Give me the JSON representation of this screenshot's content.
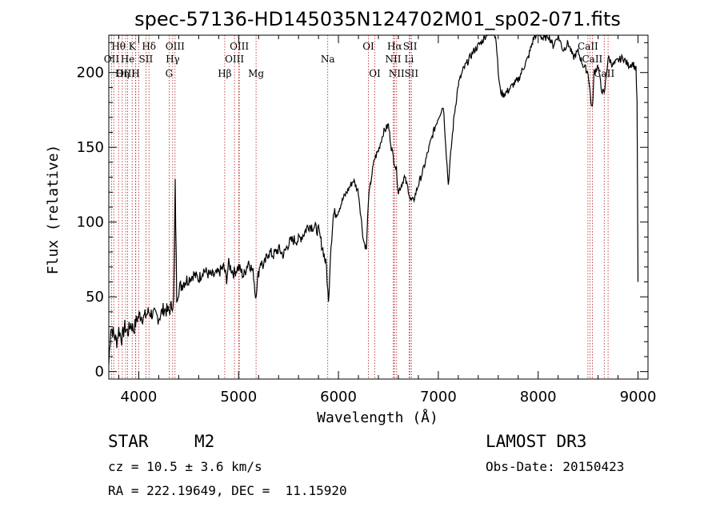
{
  "chart_data": {
    "type": "line",
    "title": "spec-57136-HD145035N124702M01_sp02-071.fits",
    "xlabel": "Wavelength (Å)",
    "ylabel": "Flux (relative)",
    "xlim": [
      3700,
      9100
    ],
    "ylim": [
      -5,
      225
    ],
    "xticks": [
      4000,
      5000,
      6000,
      7000,
      8000,
      9000
    ],
    "yticks": [
      0,
      50,
      100,
      150,
      200
    ],
    "colors": {
      "spectrum": "#000000",
      "lines": "#b02020"
    },
    "series": [
      {
        "name": "flux",
        "x": [
          3700,
          3720,
          3750,
          3780,
          3800,
          3830,
          3860,
          3890,
          3920,
          3950,
          3980,
          4010,
          4050,
          4100,
          4150,
          4200,
          4250,
          4300,
          4330,
          4350,
          4365,
          4380,
          4400,
          4450,
          4500,
          4550,
          4600,
          4650,
          4700,
          4750,
          4800,
          4850,
          4880,
          4900,
          4950,
          5000,
          5050,
          5100,
          5150,
          5170,
          5190,
          5220,
          5250,
          5300,
          5350,
          5400,
          5450,
          5500,
          5550,
          5600,
          5650,
          5700,
          5750,
          5800,
          5850,
          5880,
          5900,
          5920,
          5950,
          6000,
          6050,
          6100,
          6150,
          6200,
          6250,
          6280,
          6300,
          6330,
          6360,
          6400,
          6450,
          6500,
          6530,
          6560,
          6580,
          6600,
          6630,
          6660,
          6700,
          6720,
          6750,
          6800,
          6850,
          6900,
          6950,
          7000,
          7050,
          7100,
          7130,
          7160,
          7200,
          7250,
          7300,
          7350,
          7400,
          7450,
          7500,
          7550,
          7580,
          7600,
          7620,
          7650,
          7700,
          7750,
          7800,
          7850,
          7900,
          7950,
          8000,
          8050,
          8100,
          8150,
          8200,
          8250,
          8300,
          8350,
          8400,
          8450,
          8500,
          8530,
          8542,
          8560,
          8600,
          8630,
          8662,
          8700,
          8750,
          8800,
          8850,
          8900,
          8950,
          8980,
          8990,
          8995,
          9000
        ],
        "values": [
          5,
          30,
          25,
          20,
          28,
          22,
          30,
          26,
          32,
          28,
          35,
          38,
          36,
          40,
          38,
          36,
          42,
          40,
          44,
          48,
          125,
          50,
          55,
          60,
          62,
          65,
          62,
          68,
          65,
          64,
          66,
          70,
          62,
          72,
          66,
          70,
          64,
          74,
          65,
          50,
          62,
          74,
          70,
          80,
          78,
          82,
          78,
          86,
          88,
          88,
          92,
          98,
          97,
          94,
          80,
          70,
          45,
          80,
          105,
          108,
          116,
          122,
          128,
          120,
          88,
          82,
          115,
          130,
          142,
          148,
          160,
          165,
          150,
          140,
          135,
          120,
          125,
          130,
          122,
          115,
          114,
          125,
          135,
          148,
          160,
          170,
          178,
          125,
          150,
          172,
          192,
          202,
          208,
          214,
          218,
          222,
          228,
          228,
          222,
          200,
          188,
          185,
          188,
          192,
          195,
          203,
          210,
          222,
          228,
          222,
          225,
          218,
          225,
          215,
          220,
          210,
          214,
          205,
          200,
          180,
          175,
          200,
          205,
          190,
          185,
          210,
          205,
          208,
          210,
          205,
          206,
          202,
          180,
          120,
          60
        ]
      }
    ],
    "lines_top": [
      {
        "label": "Hθ",
        "x": 3798
      },
      {
        "label": "K",
        "x": 3934
      },
      {
        "label": "Hδ",
        "x": 4102
      },
      {
        "label": "OIII",
        "x": 4363
      },
      {
        "label": "OIII",
        "x": 5007
      },
      {
        "label": "OI",
        "x": 6300
      },
      {
        "label": "Hα",
        "x": 6563
      },
      {
        "label": "SII",
        "x": 6717
      },
      {
        "label": "CaII",
        "x": 8498
      }
    ],
    "lines_mid": [
      {
        "label": "OII",
        "x": 3727
      },
      {
        "label": "He",
        "x": 3889
      },
      {
        "label": "SII",
        "x": 4072
      },
      {
        "label": "Hγ",
        "x": 4340
      },
      {
        "label": "OIII",
        "x": 4959
      },
      {
        "label": "Na",
        "x": 5893
      },
      {
        "label": "NII",
        "x": 6548
      },
      {
        "label": "Li",
        "x": 6708
      },
      {
        "label": "CaII",
        "x": 8542
      }
    ],
    "lines_low": [
      {
        "label": "OIII",
        "x": 3869
      },
      {
        "label": "Hη",
        "x": 3835
      },
      {
        "label": "H",
        "x": 3968
      },
      {
        "label": "G",
        "x": 4304
      },
      {
        "label": "Hβ",
        "x": 4861
      },
      {
        "label": "Mg",
        "x": 5175
      },
      {
        "label": "OI",
        "x": 6364
      },
      {
        "label": "NII",
        "x": 6583
      },
      {
        "label": "SII",
        "x": 6731
      },
      {
        "label": "CaII",
        "x": 8662
      }
    ],
    "extra_line_positions": [
      3750,
      3970,
      4000,
      5000,
      6560,
      8520,
      8700
    ]
  },
  "info": {
    "class_label": "STAR",
    "subclass": "M2",
    "survey": "LAMOST DR3",
    "cz": "cz = 10.5 ± 3.6 km/s",
    "obs_date": "Obs-Date: 20150423",
    "coords": "RA = 222.19649, DEC =  11.15920"
  }
}
